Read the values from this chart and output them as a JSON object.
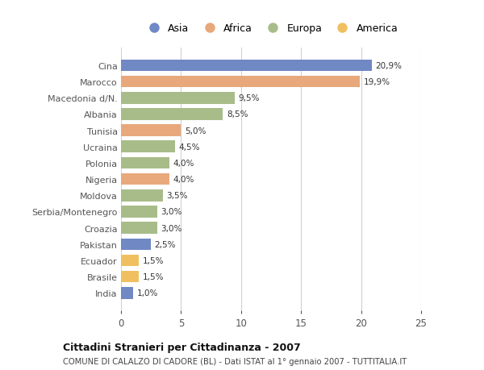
{
  "countries": [
    "Cina",
    "Marocco",
    "Macedonia d/N.",
    "Albania",
    "Tunisia",
    "Ucraina",
    "Polonia",
    "Nigeria",
    "Moldova",
    "Serbia/Montenegro",
    "Croazia",
    "Pakistan",
    "Ecuador",
    "Brasile",
    "India"
  ],
  "values": [
    20.9,
    19.9,
    9.5,
    8.5,
    5.0,
    4.5,
    4.0,
    4.0,
    3.5,
    3.0,
    3.0,
    2.5,
    1.5,
    1.5,
    1.0
  ],
  "labels": [
    "20,9%",
    "19,9%",
    "9,5%",
    "8,5%",
    "5,0%",
    "4,5%",
    "4,0%",
    "4,0%",
    "3,5%",
    "3,0%",
    "3,0%",
    "2,5%",
    "1,5%",
    "1,5%",
    "1,0%"
  ],
  "continents": [
    "Asia",
    "Africa",
    "Europa",
    "Europa",
    "Africa",
    "Europa",
    "Europa",
    "Africa",
    "Europa",
    "Europa",
    "Europa",
    "Asia",
    "America",
    "America",
    "Asia"
  ],
  "colors": {
    "Asia": "#7088c4",
    "Africa": "#e8a87c",
    "Europa": "#a8bc8a",
    "America": "#f0c060"
  },
  "legend_order": [
    "Asia",
    "Africa",
    "Europa",
    "America"
  ],
  "xlim": [
    0,
    25
  ],
  "xticks": [
    0,
    5,
    10,
    15,
    20,
    25
  ],
  "title": "Cittadini Stranieri per Cittadinanza - 2007",
  "subtitle": "COMUNE DI CALALZO DI CADORE (BL) - Dati ISTAT al 1° gennaio 2007 - TUTTITALIA.IT",
  "background_color": "#ffffff",
  "grid_color": "#d0d0d0"
}
